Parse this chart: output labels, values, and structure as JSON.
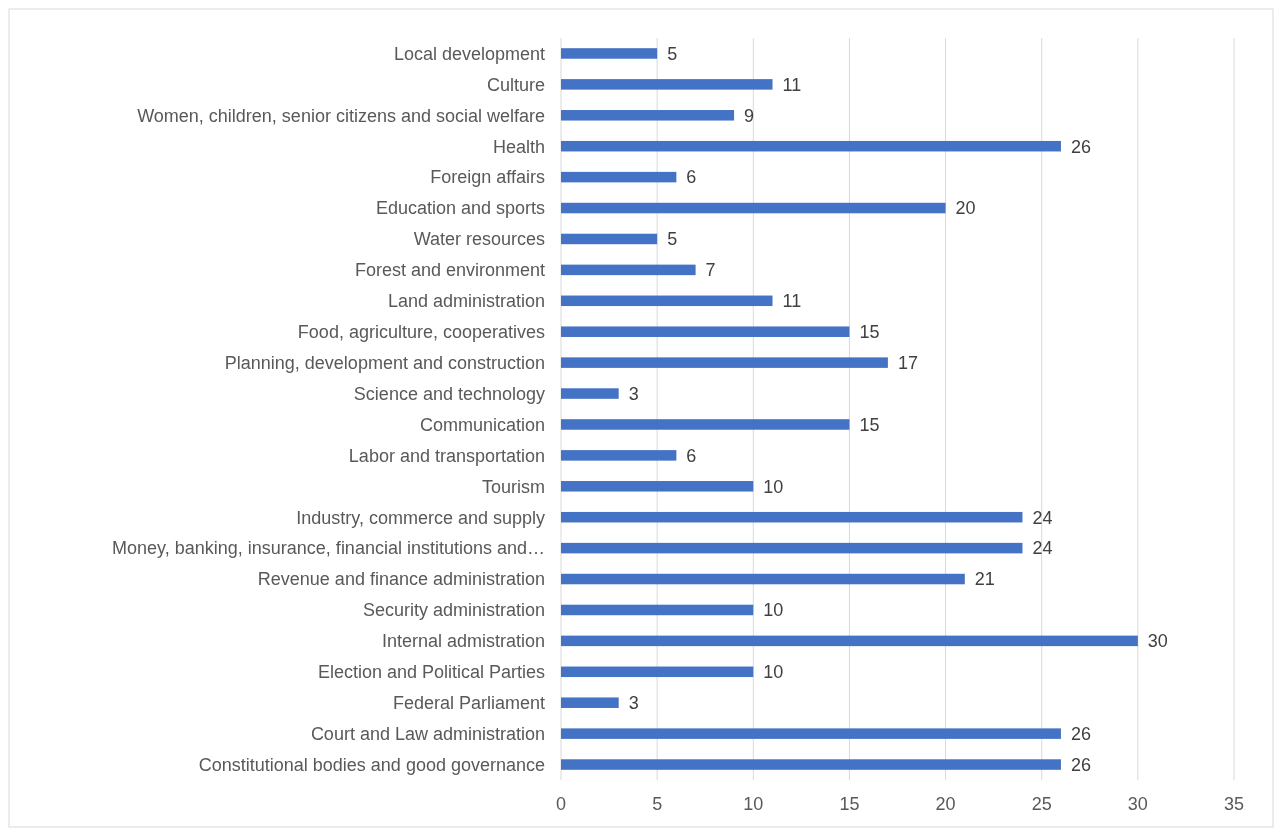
{
  "chart_data": {
    "type": "bar",
    "orientation": "horizontal",
    "categories": [
      "Local development",
      "Culture",
      "Women, children, senior citizens and social welfare",
      "Health",
      "Foreign affairs",
      "Education and sports",
      "Water resources",
      "Forest and environment",
      "Land administration",
      "Food, agriculture, cooperatives",
      "Planning, development and construction",
      "Science and technology",
      "Communication",
      "Labor and transportation",
      "Tourism",
      "Industry, commerce and supply",
      "Money, banking, insurance, financial institutions and…",
      "Revenue and finance administration",
      "Security administration",
      "Internal admistration",
      "Election and Political Parties",
      "Federal Parliament",
      "Court and Law administration",
      "Constitutional bodies and good governance"
    ],
    "values": [
      5,
      11,
      9,
      26,
      6,
      20,
      5,
      7,
      11,
      15,
      17,
      3,
      15,
      6,
      10,
      24,
      24,
      21,
      10,
      30,
      10,
      3,
      26,
      26
    ],
    "color": "#4472c4",
    "xlim": [
      0,
      35
    ],
    "xticks": [
      0,
      5,
      10,
      15,
      20,
      25,
      30,
      35
    ],
    "grid": "x",
    "data_labels": true
  }
}
